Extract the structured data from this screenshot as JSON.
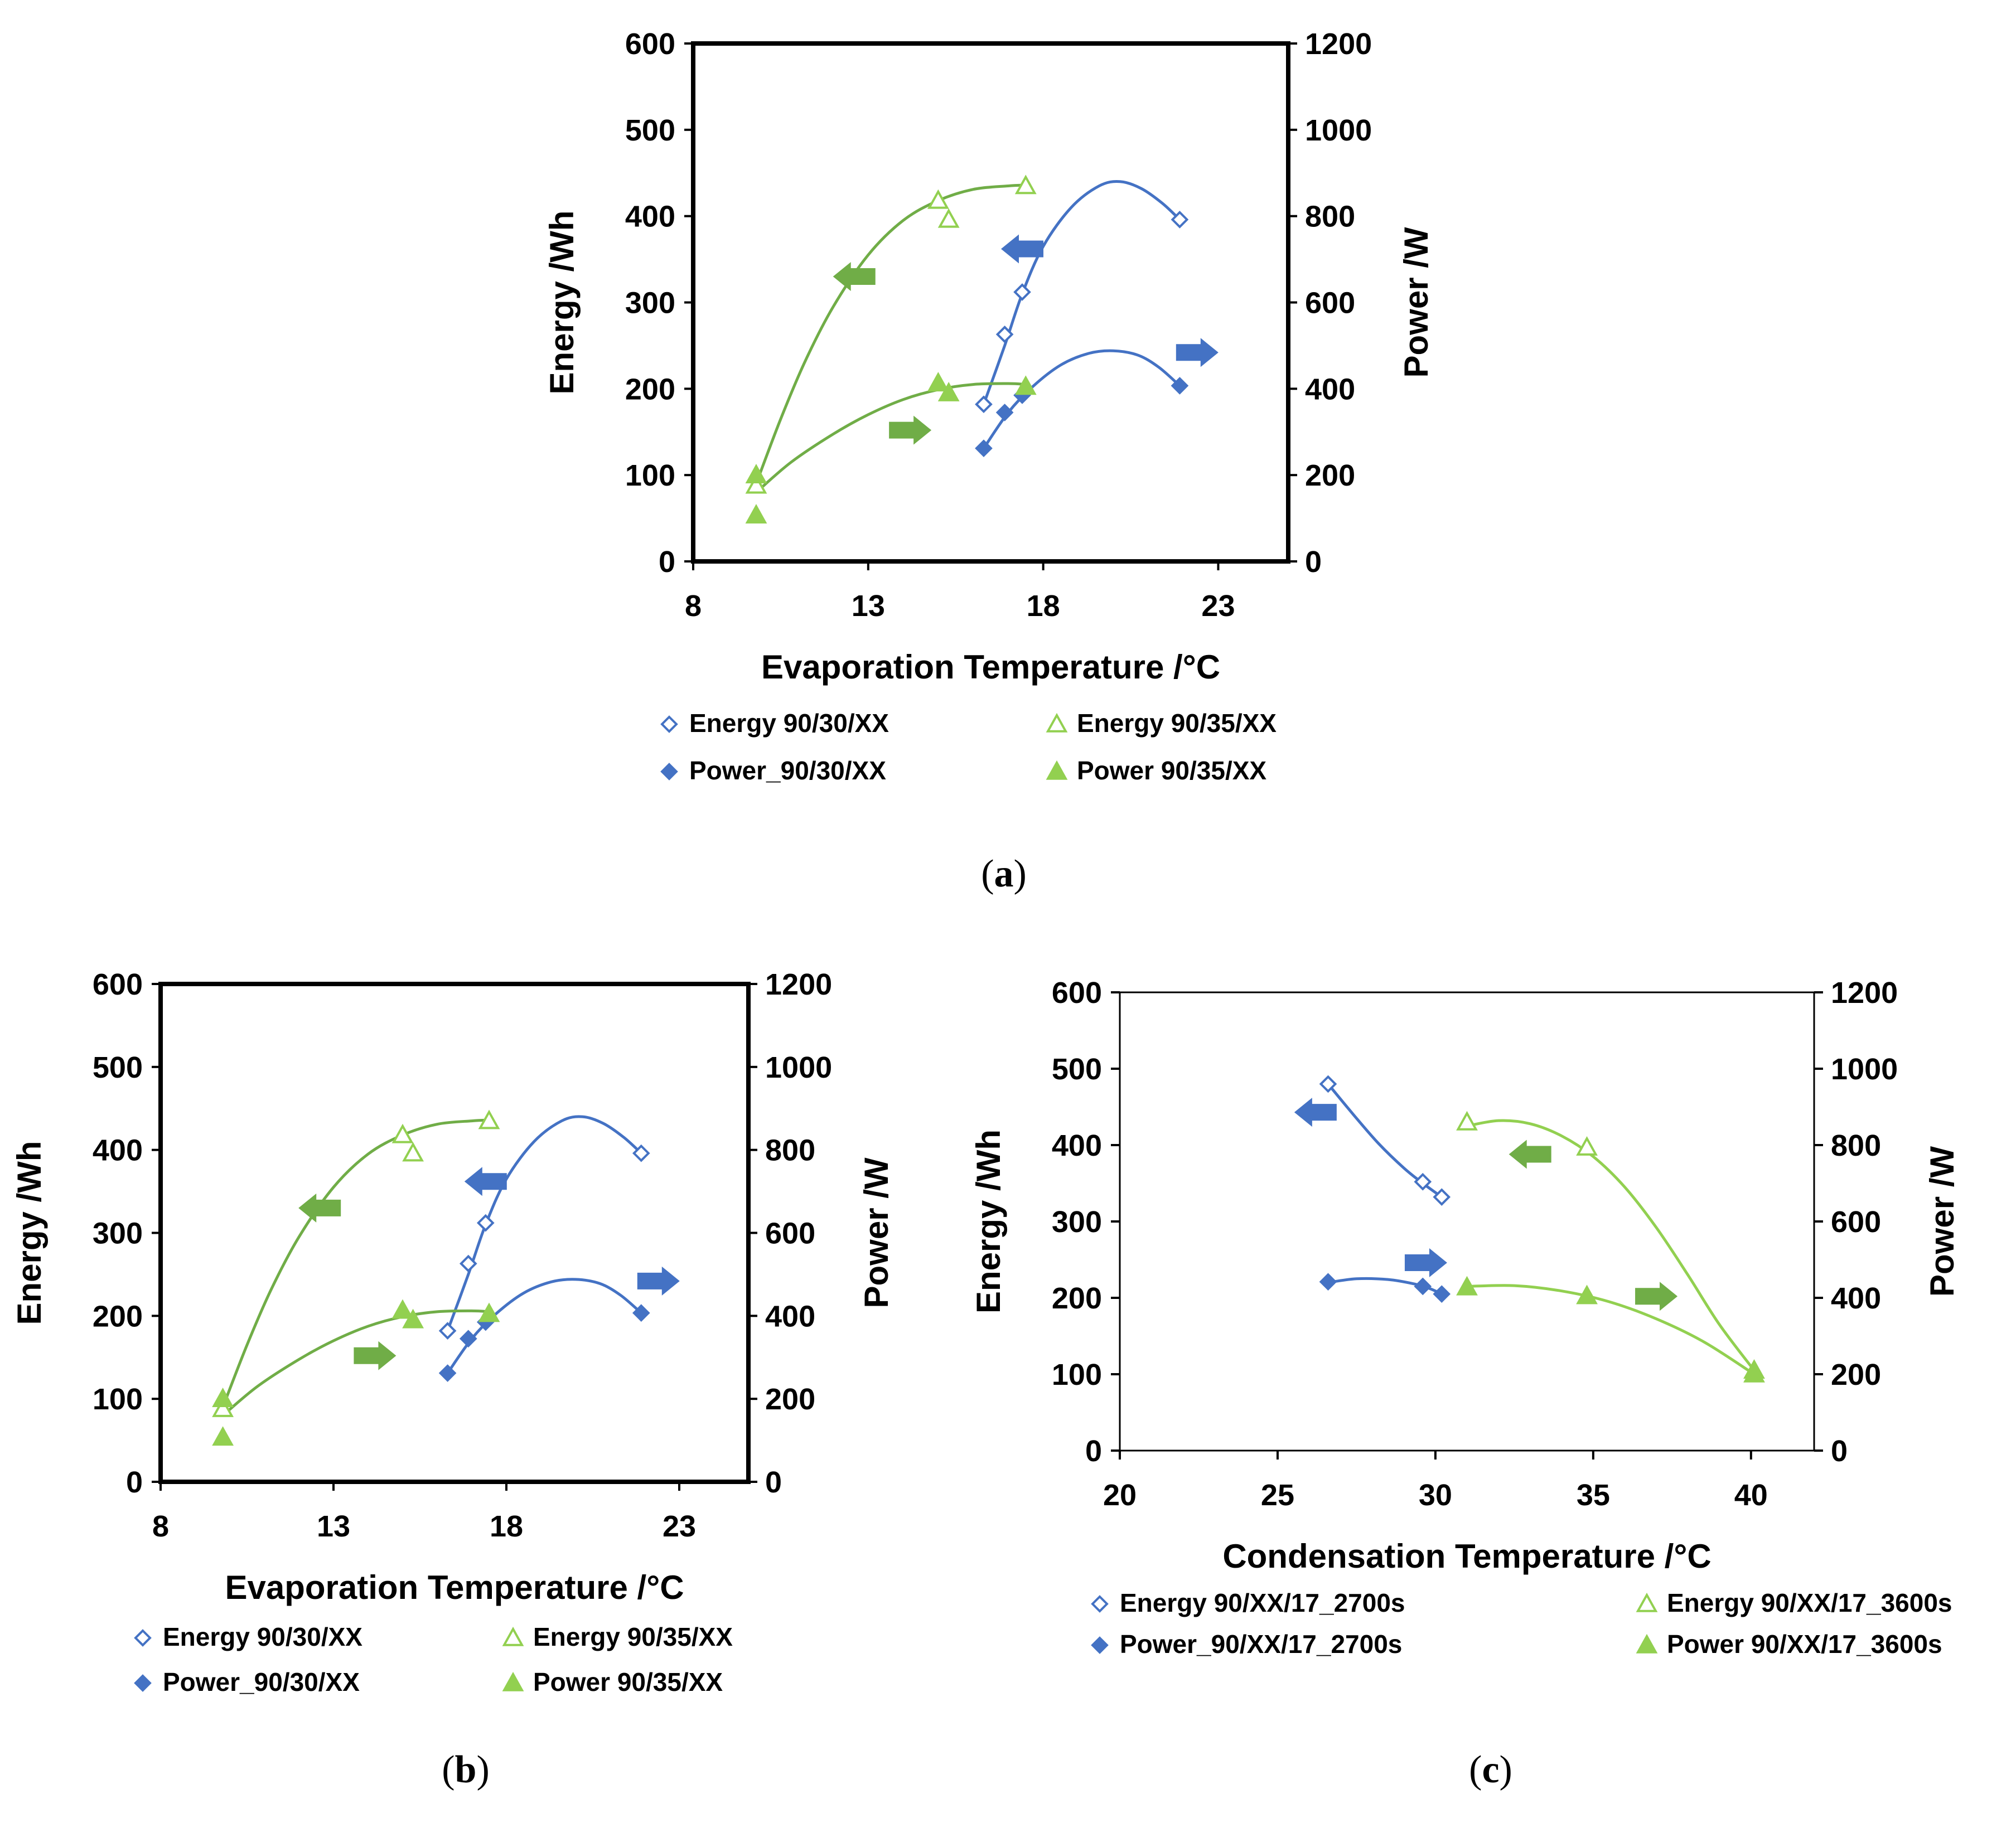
{
  "colors": {
    "blue": "#4472c4",
    "green_dark": "#70ad47",
    "green_light": "#92d050"
  },
  "chart_data": [
    {
      "type": "scatter",
      "panel": "a",
      "caption": "a",
      "xlabel": "Evaporation Temperature /°C",
      "ylabel": "Energy /Wh",
      "y2label": "Power /W",
      "xlim": [
        8,
        25
      ],
      "xticks": [
        8,
        13,
        18,
        23
      ],
      "ylim": [
        0,
        600
      ],
      "yticks": [
        0,
        100,
        200,
        300,
        400,
        500,
        600
      ],
      "y2lim": [
        0,
        1200
      ],
      "y2ticks": [
        0,
        200,
        400,
        600,
        800,
        1000,
        1200
      ],
      "grid": false,
      "legend_position": "bottom",
      "series": [
        {
          "name": "Energy 90/30/XX",
          "axis": "left",
          "marker": "diamond-open",
          "color": "#4472c4",
          "curve_color": "#4472c4",
          "x": [
            16.3,
            16.9,
            17.4,
            21.9
          ],
          "y": [
            182,
            263,
            312,
            396
          ],
          "fit": [
            [
              16.3,
              182
            ],
            [
              16.9,
              250
            ],
            [
              17.4,
              310
            ],
            [
              18.0,
              365
            ],
            [
              18.8,
              410
            ],
            [
              19.6,
              435
            ],
            [
              20.2,
              440
            ],
            [
              20.8,
              432
            ],
            [
              21.4,
              415
            ],
            [
              21.9,
              396
            ]
          ]
        },
        {
          "name": "Energy 90/35/XX",
          "axis": "left",
          "marker": "triangle-open",
          "color": "#92d050",
          "curve_color": "#70ad47",
          "x": [
            9.8,
            15.0,
            15.3,
            17.5
          ],
          "y": [
            88,
            418,
            396,
            435
          ],
          "fit": [
            [
              9.8,
              90
            ],
            [
              10.5,
              165
            ],
            [
              11.2,
              232
            ],
            [
              12.0,
              295
            ],
            [
              13.0,
              355
            ],
            [
              14.0,
              395
            ],
            [
              15.0,
              418
            ],
            [
              16.0,
              431
            ],
            [
              17.0,
              435
            ],
            [
              17.5,
              436
            ]
          ]
        },
        {
          "name": "Power_90/30/XX",
          "axis": "right",
          "marker": "diamond",
          "color": "#4472c4",
          "curve_color": "#4472c4",
          "x": [
            16.3,
            16.9,
            17.4,
            21.9
          ],
          "y": [
            262,
            345,
            385,
            407
          ],
          "fit": [
            [
              16.3,
              262
            ],
            [
              17.0,
              345
            ],
            [
              17.7,
              405
            ],
            [
              18.5,
              455
            ],
            [
              19.3,
              482
            ],
            [
              20.0,
              488
            ],
            [
              20.7,
              478
            ],
            [
              21.3,
              450
            ],
            [
              21.9,
              407
            ]
          ]
        },
        {
          "name": "Power 90/35/XX",
          "axis": "right",
          "marker": "triangle",
          "color": "#92d050",
          "curve_color": "#70ad47",
          "x": [
            9.8,
            9.8,
            15.0,
            15.3,
            17.5
          ],
          "y": [
            200,
            107,
            413,
            390,
            405
          ],
          "fit": [
            [
              9.8,
              160
            ],
            [
              10.8,
              230
            ],
            [
              12.0,
              295
            ],
            [
              13.0,
              340
            ],
            [
              14.0,
              375
            ],
            [
              15.0,
              398
            ],
            [
              16.0,
              410
            ],
            [
              17.0,
              412
            ],
            [
              17.5,
              410
            ]
          ]
        }
      ],
      "annotations": [
        {
          "type": "arrow",
          "direction": "left",
          "color": "#70ad47",
          "x": 12.6,
          "y": 330,
          "axis": "left"
        },
        {
          "type": "arrow",
          "direction": "right",
          "color": "#70ad47",
          "x": 14.2,
          "y": 152,
          "axis": "left"
        },
        {
          "type": "arrow",
          "direction": "left",
          "color": "#4472c4",
          "x": 17.4,
          "y": 362,
          "axis": "left"
        },
        {
          "type": "arrow",
          "direction": "right",
          "color": "#4472c4",
          "x": 22.4,
          "y": 242,
          "axis": "left"
        }
      ]
    },
    {
      "type": "scatter",
      "panel": "b",
      "caption": "b",
      "xlabel": "Evaporation Temperature /°C",
      "ylabel": "Energy /Wh",
      "y2label": "Power /W",
      "xlim": [
        8,
        25
      ],
      "xticks": [
        8,
        13,
        18,
        23
      ],
      "ylim": [
        0,
        600
      ],
      "yticks": [
        0,
        100,
        200,
        300,
        400,
        500,
        600
      ],
      "y2lim": [
        0,
        1200
      ],
      "y2ticks": [
        0,
        200,
        400,
        600,
        800,
        1000,
        1200
      ],
      "grid": false,
      "legend_position": "bottom",
      "series": [
        {
          "name": "Energy 90/30/XX",
          "axis": "left",
          "marker": "diamond-open",
          "color": "#4472c4",
          "curve_color": "#4472c4",
          "x": [
            16.3,
            16.9,
            17.4,
            21.9
          ],
          "y": [
            182,
            263,
            312,
            396
          ],
          "fit": [
            [
              16.3,
              182
            ],
            [
              16.9,
              250
            ],
            [
              17.4,
              310
            ],
            [
              18.0,
              365
            ],
            [
              18.8,
              410
            ],
            [
              19.6,
              435
            ],
            [
              20.2,
              440
            ],
            [
              20.8,
              432
            ],
            [
              21.4,
              415
            ],
            [
              21.9,
              396
            ]
          ]
        },
        {
          "name": "Energy 90/35/XX",
          "axis": "left",
          "marker": "triangle-open",
          "color": "#92d050",
          "curve_color": "#70ad47",
          "x": [
            9.8,
            15.0,
            15.3,
            17.5
          ],
          "y": [
            88,
            418,
            396,
            435
          ],
          "fit": [
            [
              9.8,
              90
            ],
            [
              10.5,
              165
            ],
            [
              11.2,
              232
            ],
            [
              12.0,
              295
            ],
            [
              13.0,
              355
            ],
            [
              14.0,
              395
            ],
            [
              15.0,
              418
            ],
            [
              16.0,
              431
            ],
            [
              17.0,
              435
            ],
            [
              17.5,
              436
            ]
          ]
        },
        {
          "name": "Power_90/30/XX",
          "axis": "right",
          "marker": "diamond",
          "color": "#4472c4",
          "curve_color": "#4472c4",
          "x": [
            16.3,
            16.9,
            17.4,
            21.9
          ],
          "y": [
            262,
            345,
            385,
            407
          ],
          "fit": [
            [
              16.3,
              262
            ],
            [
              17.0,
              345
            ],
            [
              17.7,
              405
            ],
            [
              18.5,
              455
            ],
            [
              19.3,
              482
            ],
            [
              20.0,
              488
            ],
            [
              20.7,
              478
            ],
            [
              21.3,
              450
            ],
            [
              21.9,
              407
            ]
          ]
        },
        {
          "name": "Power 90/35/XX",
          "axis": "right",
          "marker": "triangle",
          "color": "#92d050",
          "curve_color": "#70ad47",
          "x": [
            9.8,
            9.8,
            15.0,
            15.3,
            17.5
          ],
          "y": [
            200,
            107,
            413,
            390,
            405
          ],
          "fit": [
            [
              9.8,
              160
            ],
            [
              10.8,
              230
            ],
            [
              12.0,
              295
            ],
            [
              13.0,
              340
            ],
            [
              14.0,
              375
            ],
            [
              15.0,
              398
            ],
            [
              16.0,
              410
            ],
            [
              17.0,
              412
            ],
            [
              17.5,
              410
            ]
          ]
        }
      ],
      "annotations": [
        {
          "type": "arrow",
          "direction": "left",
          "color": "#70ad47",
          "x": 12.6,
          "y": 330,
          "axis": "left"
        },
        {
          "type": "arrow",
          "direction": "right",
          "color": "#70ad47",
          "x": 14.2,
          "y": 152,
          "axis": "left"
        },
        {
          "type": "arrow",
          "direction": "left",
          "color": "#4472c4",
          "x": 17.4,
          "y": 362,
          "axis": "left"
        },
        {
          "type": "arrow",
          "direction": "right",
          "color": "#4472c4",
          "x": 22.4,
          "y": 242,
          "axis": "left"
        }
      ]
    },
    {
      "type": "scatter",
      "panel": "c",
      "caption": "c",
      "xlabel": "Condensation Temperature /°C",
      "ylabel": "Energy /Wh",
      "y2label": "Power /W",
      "xlim": [
        20,
        42
      ],
      "xticks": [
        20,
        25,
        30,
        35,
        40
      ],
      "ylim": [
        0,
        600
      ],
      "yticks": [
        0,
        100,
        200,
        300,
        400,
        500,
        600
      ],
      "y2lim": [
        0,
        1200
      ],
      "y2ticks": [
        0,
        200,
        400,
        600,
        800,
        1000,
        1200
      ],
      "grid": false,
      "legend_position": "bottom",
      "series": [
        {
          "name": "Energy 90/XX/17_2700s",
          "axis": "left",
          "marker": "diamond-open",
          "color": "#4472c4",
          "curve_color": "#4472c4",
          "x": [
            26.6,
            29.6,
            30.2
          ],
          "y": [
            480,
            352,
            332
          ],
          "fit": [
            [
              26.6,
              480
            ],
            [
              27.4,
              440
            ],
            [
              28.2,
              402
            ],
            [
              29.0,
              370
            ],
            [
              29.6,
              350
            ],
            [
              30.2,
              332
            ]
          ]
        },
        {
          "name": "Energy 90/XX/17_3600s",
          "axis": "left",
          "marker": "triangle-open",
          "color": "#92d050",
          "curve_color": "#92d050",
          "x": [
            31.0,
            34.8,
            40.1
          ],
          "y": [
            430,
            397,
            105
          ],
          "fit": [
            [
              31.0,
              425
            ],
            [
              32.0,
              432
            ],
            [
              33.0,
              428
            ],
            [
              34.0,
              412
            ],
            [
              35.0,
              385
            ],
            [
              36.0,
              345
            ],
            [
              37.0,
              292
            ],
            [
              38.0,
              230
            ],
            [
              39.0,
              165
            ],
            [
              40.1,
              105
            ]
          ]
        },
        {
          "name": "Power_90/XX/17_2700s",
          "axis": "right",
          "marker": "diamond",
          "color": "#4472c4",
          "curve_color": "#4472c4",
          "x": [
            26.6,
            29.6,
            30.2
          ],
          "y": [
            442,
            430,
            410
          ],
          "fit": [
            [
              26.6,
              440
            ],
            [
              27.5,
              450
            ],
            [
              28.5,
              448
            ],
            [
              29.3,
              437
            ],
            [
              29.8,
              425
            ],
            [
              30.2,
              410
            ]
          ]
        },
        {
          "name": "Power 90/XX/17_3600s",
          "axis": "right",
          "marker": "triangle",
          "color": "#92d050",
          "curve_color": "#92d050",
          "x": [
            31.0,
            34.8,
            40.1
          ],
          "y": [
            428,
            405,
            200
          ],
          "fit": [
            [
              31.0,
              430
            ],
            [
              32.5,
              432
            ],
            [
              34.0,
              418
            ],
            [
              35.5,
              390
            ],
            [
              37.0,
              345
            ],
            [
              38.5,
              285
            ],
            [
              40.1,
              200
            ]
          ]
        }
      ],
      "annotations": [
        {
          "type": "arrow",
          "direction": "left",
          "color": "#4472c4",
          "x": 26.2,
          "y": 443,
          "axis": "left"
        },
        {
          "type": "arrow",
          "direction": "right",
          "color": "#4472c4",
          "x": 29.7,
          "y": 246,
          "axis": "left"
        },
        {
          "type": "arrow",
          "direction": "left",
          "color": "#70ad47",
          "x": 33.0,
          "y": 388,
          "axis": "left"
        },
        {
          "type": "arrow",
          "direction": "right",
          "color": "#70ad47",
          "x": 37.0,
          "y": 202,
          "axis": "left"
        }
      ]
    }
  ]
}
